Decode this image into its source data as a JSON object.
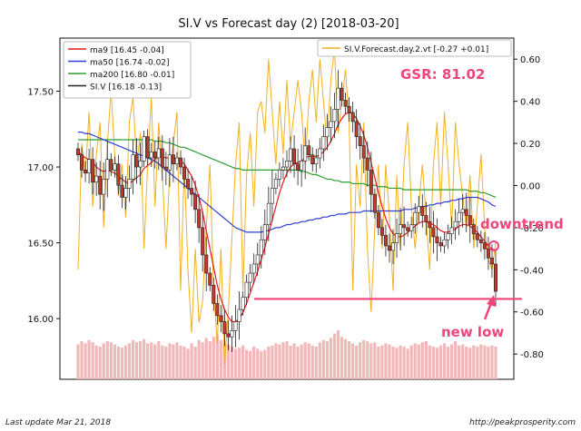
{
  "chart_data": {
    "type": "candlestick",
    "title": "SI.V vs Forecast day (2)  [2018-03-20]",
    "left_axis": {
      "ticks": [
        "16.00",
        "16.50",
        "17.00",
        "17.50"
      ],
      "tick_values": [
        16.0,
        16.5,
        17.0,
        17.5
      ],
      "ylim": [
        15.6,
        17.85
      ]
    },
    "right_axis": {
      "ticks": [
        "-0.80",
        "-0.60",
        "-0.40",
        "-0.20",
        "0.00",
        "0.20",
        "0.40",
        "0.60"
      ],
      "tick_values": [
        -0.8,
        -0.6,
        -0.4,
        -0.2,
        0.0,
        0.2,
        0.4,
        0.6
      ],
      "ylim": [
        -0.92,
        0.7
      ]
    },
    "legend_left": {
      "placement": "top-left",
      "entries": [
        {
          "label": "ma9 [16.45 -0.04]",
          "color": "#e41a1c"
        },
        {
          "label": "ma50 [16.74 -0.02]",
          "color": "#2c3fd6"
        },
        {
          "label": "ma200 [16.80 -0.01]",
          "color": "#2e9e2e"
        },
        {
          "label": "SI.V [16.18 -0.13]",
          "color": "#222222"
        }
      ]
    },
    "legend_right": {
      "placement": "top-right",
      "entries": [
        {
          "label": "SI.V.Forecast.day.2.vt [-0.27 +0.01]",
          "color": "#f2b01e"
        }
      ]
    },
    "n_bars": 115,
    "closes": [
      17.08,
      16.98,
      16.96,
      17.05,
      16.9,
      16.94,
      16.82,
      16.92,
      17.05,
      16.98,
      17.02,
      16.88,
      16.8,
      16.86,
      16.92,
      17.08,
      17.0,
      17.04,
      17.2,
      17.06,
      17.1,
      17.06,
      17.12,
      17.0,
      16.98,
      17.08,
      17.02,
      17.06,
      17.0,
      16.92,
      16.86,
      16.82,
      16.72,
      16.6,
      16.42,
      16.3,
      16.22,
      16.1,
      16.02,
      15.98,
      15.9,
      15.88,
      15.92,
      15.98,
      16.06,
      16.14,
      16.24,
      16.3,
      16.36,
      16.42,
      16.52,
      16.62,
      16.76,
      16.86,
      16.92,
      16.98,
      17.0,
      17.04,
      17.12,
      17.02,
      16.98,
      17.04,
      17.14,
      17.08,
      17.02,
      17.06,
      17.12,
      17.2,
      17.26,
      17.3,
      17.38,
      17.52,
      17.44,
      17.4,
      17.36,
      17.3,
      17.2,
      17.14,
      17.06,
      16.98,
      16.82,
      16.7,
      16.6,
      16.55,
      16.48,
      16.45,
      16.5,
      16.56,
      16.62,
      16.6,
      16.58,
      16.62,
      16.7,
      16.74,
      16.68,
      16.64,
      16.6,
      16.54,
      16.5,
      16.48,
      16.52,
      16.56,
      16.6,
      16.64,
      16.7,
      16.72,
      16.68,
      16.62,
      16.56,
      16.52,
      16.5,
      16.46,
      16.4,
      16.36,
      16.18
    ],
    "ma9": [
      17.1,
      17.08,
      17.06,
      17.05,
      17.03,
      17.0,
      16.98,
      16.97,
      16.98,
      16.97,
      16.96,
      16.94,
      16.92,
      16.9,
      16.89,
      16.91,
      16.93,
      16.95,
      16.99,
      17.01,
      17.03,
      17.05,
      17.07,
      17.07,
      17.06,
      17.06,
      17.06,
      17.05,
      17.04,
      17.02,
      16.98,
      16.94,
      16.88,
      16.8,
      16.7,
      16.58,
      16.46,
      16.34,
      16.22,
      16.13,
      16.06,
      16.01,
      15.98,
      15.98,
      16.0,
      16.04,
      16.1,
      16.17,
      16.24,
      16.31,
      16.39,
      16.47,
      16.56,
      16.65,
      16.74,
      16.83,
      16.9,
      16.96,
      17.0,
      17.02,
      17.03,
      17.04,
      17.06,
      17.07,
      17.07,
      17.07,
      17.08,
      17.1,
      17.13,
      17.17,
      17.22,
      17.28,
      17.32,
      17.35,
      17.36,
      17.35,
      17.32,
      17.27,
      17.21,
      17.13,
      17.03,
      16.93,
      16.83,
      16.74,
      16.66,
      16.6,
      16.56,
      16.54,
      16.54,
      16.55,
      16.57,
      16.59,
      16.61,
      16.63,
      16.64,
      16.64,
      16.63,
      16.62,
      16.6,
      16.58,
      16.57,
      16.57,
      16.58,
      16.59,
      16.61,
      16.62,
      16.62,
      16.61,
      16.59,
      16.57,
      16.54,
      16.51,
      16.48,
      16.46,
      16.45
    ],
    "ma50": [
      17.23,
      17.23,
      17.22,
      17.22,
      17.21,
      17.2,
      17.19,
      17.18,
      17.17,
      17.16,
      17.15,
      17.14,
      17.13,
      17.12,
      17.11,
      17.1,
      17.09,
      17.08,
      17.07,
      17.06,
      17.05,
      17.04,
      17.02,
      17.0,
      16.98,
      16.96,
      16.94,
      16.92,
      16.9,
      16.88,
      16.86,
      16.84,
      16.82,
      16.8,
      16.78,
      16.76,
      16.74,
      16.72,
      16.7,
      16.68,
      16.66,
      16.64,
      16.62,
      16.6,
      16.59,
      16.58,
      16.57,
      16.57,
      16.57,
      16.57,
      16.57,
      16.58,
      16.58,
      16.59,
      16.6,
      16.6,
      16.61,
      16.62,
      16.62,
      16.63,
      16.63,
      16.64,
      16.64,
      16.65,
      16.65,
      16.66,
      16.66,
      16.67,
      16.67,
      16.68,
      16.68,
      16.69,
      16.69,
      16.69,
      16.7,
      16.7,
      16.7,
      16.7,
      16.71,
      16.71,
      16.71,
      16.71,
      16.71,
      16.71,
      16.71,
      16.71,
      16.71,
      16.71,
      16.71,
      16.72,
      16.72,
      16.72,
      16.73,
      16.73,
      16.74,
      16.74,
      16.75,
      16.75,
      16.76,
      16.76,
      16.77,
      16.77,
      16.78,
      16.78,
      16.79,
      16.79,
      16.8,
      16.8,
      16.8,
      16.8,
      16.79,
      16.78,
      16.77,
      16.75,
      16.74
    ],
    "ma200": [
      17.18,
      17.18,
      17.18,
      17.18,
      17.18,
      17.18,
      17.18,
      17.18,
      17.18,
      17.18,
      17.18,
      17.18,
      17.18,
      17.18,
      17.18,
      17.18,
      17.18,
      17.18,
      17.18,
      17.18,
      17.18,
      17.17,
      17.17,
      17.17,
      17.16,
      17.16,
      17.15,
      17.14,
      17.13,
      17.13,
      17.12,
      17.11,
      17.1,
      17.09,
      17.08,
      17.07,
      17.06,
      17.05,
      17.04,
      17.03,
      17.02,
      17.01,
      17.0,
      16.99,
      16.99,
      16.98,
      16.98,
      16.98,
      16.98,
      16.98,
      16.98,
      16.98,
      16.98,
      16.98,
      16.98,
      16.98,
      16.98,
      16.98,
      16.98,
      16.98,
      16.98,
      16.97,
      16.97,
      16.96,
      16.95,
      16.95,
      16.94,
      16.93,
      16.92,
      16.92,
      16.91,
      16.91,
      16.9,
      16.9,
      16.9,
      16.89,
      16.89,
      16.89,
      16.89,
      16.88,
      16.88,
      16.88,
      16.87,
      16.87,
      16.87,
      16.86,
      16.86,
      16.86,
      16.86,
      16.85,
      16.85,
      16.85,
      16.85,
      16.85,
      16.85,
      16.85,
      16.85,
      16.85,
      16.85,
      16.85,
      16.85,
      16.85,
      16.85,
      16.85,
      16.85,
      16.85,
      16.85,
      16.84,
      16.84,
      16.84,
      16.83,
      16.83,
      16.82,
      16.81,
      16.8
    ],
    "forecast": [
      -0.4,
      0.2,
      0.05,
      0.35,
      -0.1,
      0.15,
      0.3,
      -0.2,
      0.2,
      0.45,
      0.15,
      -0.05,
      0.1,
      -0.15,
      0.3,
      0.42,
      0.1,
      0.25,
      -0.3,
      0.1,
      0.42,
      -0.1,
      0.3,
      0.05,
      -0.3,
      0.05,
      0.2,
      0.35,
      -0.5,
      0.1,
      -0.4,
      -0.7,
      -0.3,
      -0.65,
      -0.55,
      -0.2,
      0.1,
      -0.5,
      -0.75,
      -0.3,
      -0.85,
      -0.6,
      -0.25,
      0.1,
      0.3,
      -0.5,
      0.05,
      0.25,
      -0.1,
      0.35,
      0.4,
      0.25,
      0.6,
      0.35,
      0.1,
      0.4,
      0.15,
      0.5,
      0.2,
      0.35,
      0.5,
      0.35,
      0.1,
      0.4,
      0.55,
      0.3,
      0.6,
      0.4,
      0.2,
      0.5,
      0.65,
      0.25,
      0.4,
      0.55,
      0.3,
      -0.5,
      0.1,
      -0.1,
      0.3,
      -0.3,
      -0.6,
      -0.2,
      0.1,
      -0.3,
      0.1,
      -0.15,
      -0.5,
      0.05,
      -0.3,
      0.1,
      0.3,
      -0.1,
      -0.3,
      -0.1,
      0.1,
      -0.15,
      -0.4,
      0.1,
      0.3,
      -0.1,
      0.35,
      0.1,
      -0.2,
      0.3,
      0.1,
      -0.05,
      -0.2,
      0.05,
      -0.3,
      -0.1,
      0.15,
      -0.2,
      -0.35,
      -0.4,
      -0.27
    ],
    "volume": [
      3.2,
      3.5,
      3.3,
      3.6,
      3.4,
      3.1,
      3.0,
      3.3,
      3.5,
      3.4,
      3.2,
      3.0,
      2.9,
      3.1,
      3.3,
      3.6,
      3.4,
      3.5,
      3.7,
      3.3,
      3.4,
      3.2,
      3.5,
      3.1,
      3.0,
      3.3,
      3.2,
      3.4,
      3.1,
      3.0,
      2.8,
      3.3,
      3.0,
      3.6,
      3.4,
      3.8,
      3.5,
      3.9,
      4.1,
      3.6,
      3.4,
      3.2,
      3.0,
      2.8,
      2.9,
      3.1,
      2.7,
      2.6,
      3.0,
      2.8,
      2.6,
      2.7,
      3.0,
      3.1,
      3.3,
      3.2,
      3.4,
      3.5,
      3.1,
      3.3,
      3.0,
      3.2,
      3.4,
      3.3,
      3.1,
      3.0,
      3.4,
      3.6,
      3.5,
      3.8,
      4.2,
      4.5,
      3.9,
      3.7,
      3.5,
      3.3,
      3.1,
      3.4,
      3.6,
      3.5,
      3.3,
      3.4,
      3.0,
      3.1,
      3.3,
      3.2,
      3.0,
      2.9,
      3.1,
      3.0,
      2.8,
      3.1,
      3.3,
      3.2,
      3.4,
      3.5,
      3.1,
      3.0,
      2.9,
      3.1,
      3.3,
      3.0,
      3.2,
      3.5,
      3.1,
      3.2,
      3.0,
      2.9,
      3.1,
      3.0,
      3.2,
      3.1,
      3.0,
      3.1,
      3.0
    ],
    "annotations": {
      "gsr": "GSR: 81.02",
      "downtrend": "downtrend",
      "new_low": "new low",
      "support_level": 16.13
    },
    "grid": false
  },
  "footer": {
    "last_update": "Last update Mar 21, 2018",
    "url": "http://peakprosperity.com"
  },
  "colors": {
    "up_candle": "#ffffff",
    "down_candle": "#c0392b",
    "annotation": "#f0457a",
    "volume": "#f0b8b8"
  }
}
